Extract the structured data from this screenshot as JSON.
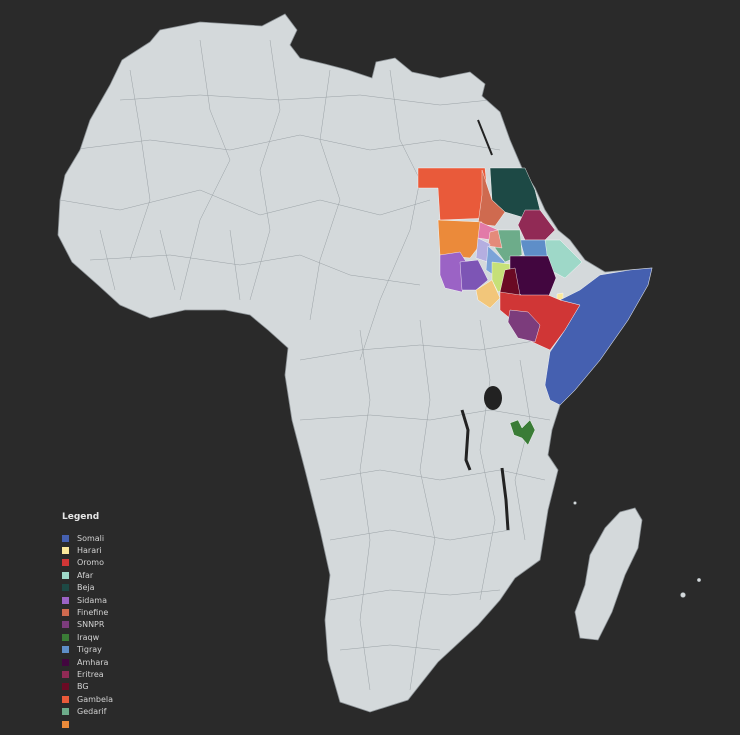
{
  "colors": {
    "background": "#2a2a2a",
    "land": "#d4d9db",
    "borders": "#8d9397",
    "water": "#222222"
  },
  "legend": {
    "title": "Legend",
    "items": [
      {
        "label": "Somali",
        "color": "#4560b0"
      },
      {
        "label": "Harari",
        "color": "#fbe89a"
      },
      {
        "label": "Oromo",
        "color": "#d03636"
      },
      {
        "label": "Afar",
        "color": "#9ed8c8"
      },
      {
        "label": "Beja",
        "color": "#1d4945"
      },
      {
        "label": "Sidama",
        "color": "#9b63c5"
      },
      {
        "label": "Finefine",
        "color": "#cf6a4f"
      },
      {
        "label": "SNNPR",
        "color": "#7c3c7c"
      },
      {
        "label": "Iraqw",
        "color": "#3a7c36"
      },
      {
        "label": "Tigray",
        "color": "#5e8ec8"
      },
      {
        "label": "Amhara",
        "color": "#42063f"
      },
      {
        "label": "Eritrea",
        "color": "#912a55"
      },
      {
        "label": "BG",
        "color": "#6a0a24"
      },
      {
        "label": "Gambela",
        "color": "#e95a3a"
      },
      {
        "label": "Gedarif",
        "color": "#6dac8a"
      },
      {
        "label": "",
        "color": "#eb8a3a"
      }
    ]
  }
}
